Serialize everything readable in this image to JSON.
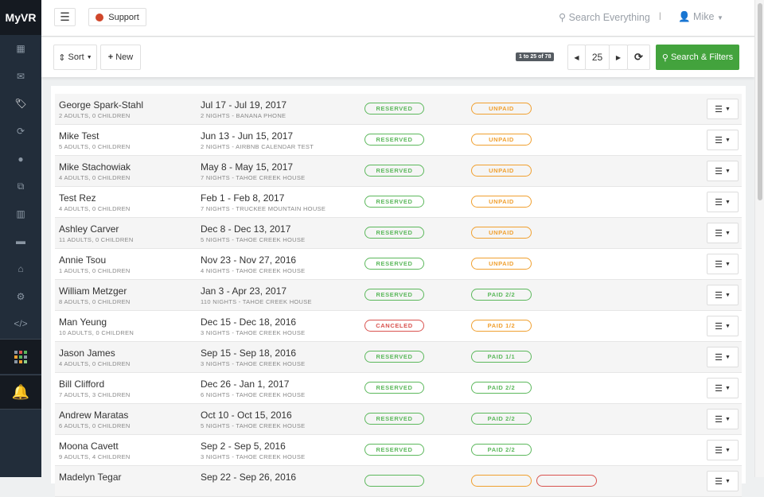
{
  "app": {
    "logo": "MyVR"
  },
  "sidebar": {
    "items": [
      {
        "icon": "calendar-icon",
        "glyph": "▦"
      },
      {
        "icon": "envelope-icon",
        "glyph": "✉"
      },
      {
        "icon": "tags-icon",
        "glyph": "🏷"
      },
      {
        "icon": "refresh-icon",
        "glyph": "⟳"
      },
      {
        "icon": "globe-icon",
        "glyph": "●"
      },
      {
        "icon": "sitemap-icon",
        "glyph": "⧉"
      },
      {
        "icon": "chart-icon",
        "glyph": "▥"
      },
      {
        "icon": "briefcase-icon",
        "glyph": "▬"
      },
      {
        "icon": "home-icon",
        "glyph": "⌂"
      },
      {
        "icon": "gear-icon",
        "glyph": "⚙"
      },
      {
        "icon": "code-icon",
        "glyph": "</>"
      }
    ],
    "apps_colors": [
      "#8a96a3",
      "#d9534f",
      "#5cb85c",
      "#f0a030",
      "#5cb85c",
      "#8a96a3",
      "#8a96a3",
      "#f0a030",
      "#8fd18a"
    ],
    "bell_glyph": "🔔"
  },
  "topbar": {
    "support": "Support",
    "search": "Search Everything",
    "separator": "|",
    "user": "Mike"
  },
  "toolbar": {
    "sort": "Sort",
    "new": "New",
    "count": "1 to 25 of 78",
    "page_size": "25",
    "search_filters": "Search & Filters"
  },
  "colors": {
    "green": "#5cb85c",
    "orange": "#f0a030",
    "red": "#d9534f",
    "accent": "#43a33d"
  },
  "reservations": [
    {
      "name": "George Spark-Stahl",
      "guests": "2 ADULTS, 0 CHILDREN",
      "dates": "Jul 17 - Jul 19, 2017",
      "details": "2 NIGHTS - BANANA PHONE",
      "status": "RESERVED",
      "status_color": "green",
      "payment": "UNPAID",
      "payment_color": "orange"
    },
    {
      "name": "Mike Test",
      "guests": "5 ADULTS, 0 CHILDREN",
      "dates": "Jun 13 - Jun 15, 2017",
      "details": "2 NIGHTS - AIRBNB CALENDAR TEST",
      "status": "RESERVED",
      "status_color": "green",
      "payment": "UNPAID",
      "payment_color": "orange"
    },
    {
      "name": "Mike Stachowiak",
      "guests": "4 ADULTS, 0 CHILDREN",
      "dates": "May 8 - May 15, 2017",
      "details": "7 NIGHTS - TAHOE CREEK HOUSE",
      "status": "RESERVED",
      "status_color": "green",
      "payment": "UNPAID",
      "payment_color": "orange"
    },
    {
      "name": "Test Rez",
      "guests": "4 ADULTS, 0 CHILDREN",
      "dates": "Feb 1 - Feb 8, 2017",
      "details": "7 NIGHTS - TRUCKEE MOUNTAIN HOUSE",
      "status": "RESERVED",
      "status_color": "green",
      "payment": "UNPAID",
      "payment_color": "orange"
    },
    {
      "name": "Ashley Carver",
      "guests": "11 ADULTS, 0 CHILDREN",
      "dates": "Dec 8 - Dec 13, 2017",
      "details": "5 NIGHTS - TAHOE CREEK HOUSE",
      "status": "RESERVED",
      "status_color": "green",
      "payment": "UNPAID",
      "payment_color": "orange"
    },
    {
      "name": "Annie Tsou",
      "guests": "1 ADULTS, 0 CHILDREN",
      "dates": "Nov 23 - Nov 27, 2016",
      "details": "4 NIGHTS - TAHOE CREEK HOUSE",
      "status": "RESERVED",
      "status_color": "green",
      "payment": "UNPAID",
      "payment_color": "orange"
    },
    {
      "name": "William Metzger",
      "guests": "8 ADULTS, 0 CHILDREN",
      "dates": "Jan 3 - Apr 23, 2017",
      "details": "110 NIGHTS - TAHOE CREEK HOUSE",
      "status": "RESERVED",
      "status_color": "green",
      "payment": "PAID  2/2",
      "payment_color": "green"
    },
    {
      "name": "Man Yeung",
      "guests": "10 ADULTS, 0 CHILDREN",
      "dates": "Dec 15 - Dec 18, 2016",
      "details": "3 NIGHTS - TAHOE CREEK HOUSE",
      "status": "CANCELED",
      "status_color": "red",
      "payment": "PAID  1/2",
      "payment_color": "orange"
    },
    {
      "name": "Jason James",
      "guests": "4 ADULTS, 0 CHILDREN",
      "dates": "Sep 15 - Sep 18, 2016",
      "details": "3 NIGHTS - TAHOE CREEK HOUSE",
      "status": "RESERVED",
      "status_color": "green",
      "payment": "PAID  1/1",
      "payment_color": "green"
    },
    {
      "name": "Bill Clifford",
      "guests": "7 ADULTS, 3 CHILDREN",
      "dates": "Dec 26 - Jan 1, 2017",
      "details": "6 NIGHTS - TAHOE CREEK HOUSE",
      "status": "RESERVED",
      "status_color": "green",
      "payment": "PAID  2/2",
      "payment_color": "green"
    },
    {
      "name": "Andrew Maratas",
      "guests": "6 ADULTS, 0 CHILDREN",
      "dates": "Oct 10 - Oct 15, 2016",
      "details": "5 NIGHTS - TAHOE CREEK HOUSE",
      "status": "RESERVED",
      "status_color": "green",
      "payment": "PAID  2/2",
      "payment_color": "green"
    },
    {
      "name": "Moona Cavett",
      "guests": "9 ADULTS, 4 CHILDREN",
      "dates": "Sep 2 - Sep 5, 2016",
      "details": "3 NIGHTS - TAHOE CREEK HOUSE",
      "status": "RESERVED",
      "status_color": "green",
      "payment": "PAID  2/2",
      "payment_color": "green"
    },
    {
      "name": "Madelyn Tegar",
      "guests": "",
      "dates": "Sep 22 - Sep 26, 2016",
      "details": "",
      "status": "",
      "status_color": "green",
      "payment": "",
      "payment_color": "orange",
      "extra_badge_color": "red"
    }
  ]
}
